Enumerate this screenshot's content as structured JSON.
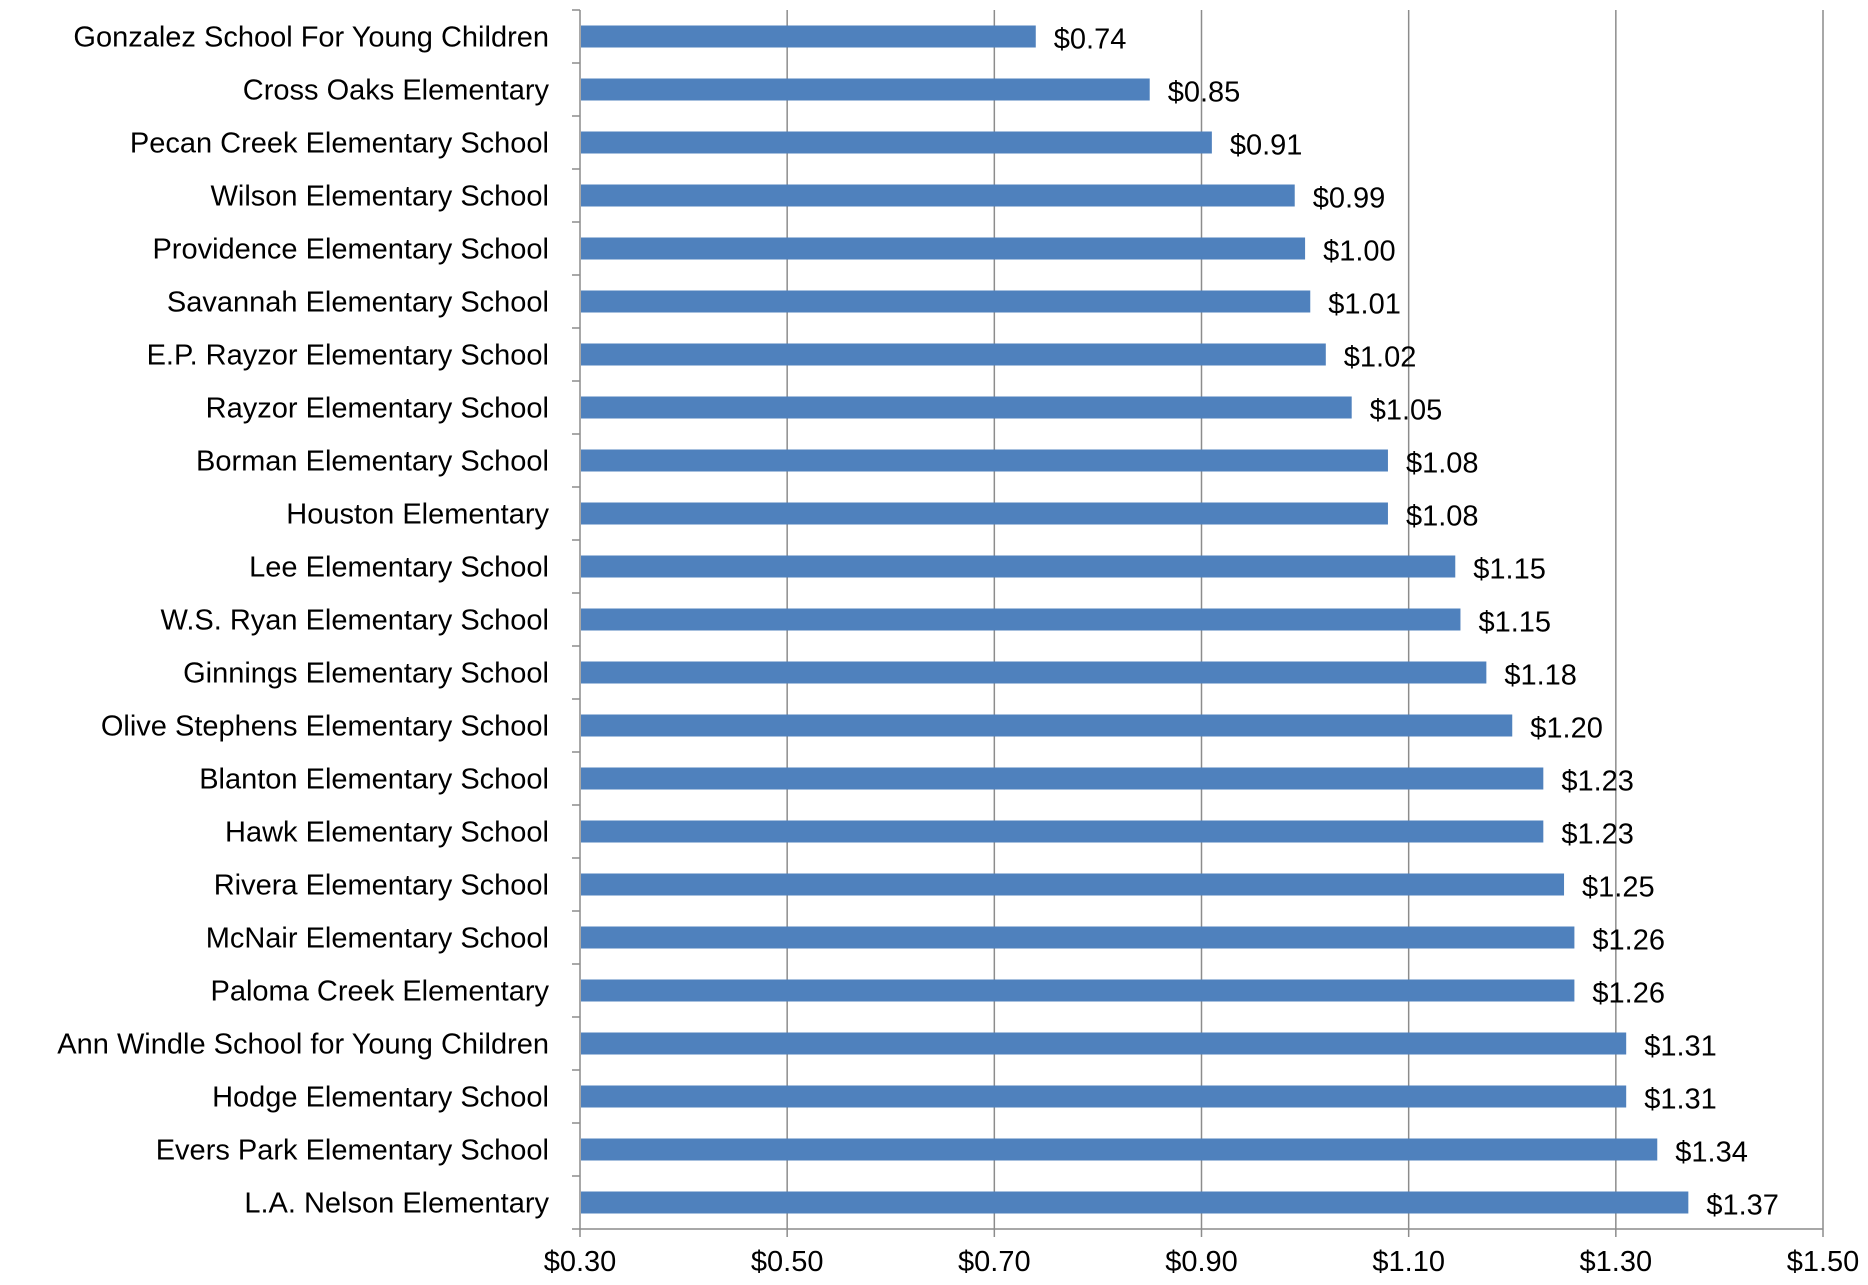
{
  "chart_data": {
    "type": "bar",
    "orientation": "horizontal",
    "title": "",
    "xlabel": "",
    "ylabel": "",
    "categories": [
      "Gonzalez School For Young Children",
      "Cross Oaks Elementary",
      "Pecan Creek Elementary School",
      "Wilson Elementary School",
      "Providence Elementary School",
      "Savannah Elementary School",
      "E.P. Rayzor Elementary School",
      "Rayzor Elementary School",
      "Borman Elementary School",
      "Houston Elementary",
      "Lee Elementary School",
      "W.S. Ryan Elementary School",
      "Ginnings Elementary School",
      "Olive Stephens Elementary School",
      "Blanton Elementary School",
      "Hawk Elementary School",
      "Rivera Elementary School",
      "McNair Elementary School",
      "Paloma Creek Elementary",
      "Ann Windle School for Young Children",
      "Hodge Elementary School",
      "Evers Park Elementary School",
      "L.A. Nelson Elementary"
    ],
    "values": [
      0.74,
      0.85,
      0.91,
      0.99,
      1.0,
      1.005,
      1.02,
      1.045,
      1.08,
      1.08,
      1.145,
      1.15,
      1.175,
      1.2,
      1.23,
      1.23,
      1.25,
      1.26,
      1.26,
      1.31,
      1.31,
      1.34,
      1.37
    ],
    "data_labels": [
      "$0.74",
      "$0.85",
      "$0.91",
      "$0.99",
      "$1.00",
      "$1.01",
      "$1.02",
      "$1.05",
      "$1.08",
      "$1.08",
      "$1.15",
      "$1.15",
      "$1.18",
      "$1.20",
      "$1.23",
      "$1.23",
      "$1.25",
      "$1.26",
      "$1.26",
      "$1.31",
      "$1.31",
      "$1.34",
      "$1.37"
    ],
    "xlim": [
      0.3,
      1.5
    ],
    "x_ticks": [
      0.3,
      0.5,
      0.7,
      0.9,
      1.1,
      1.3,
      1.5
    ],
    "x_tick_labels": [
      "$0.30",
      "$0.50",
      "$0.70",
      "$0.90",
      "$1.10",
      "$1.30",
      "$1.50"
    ],
    "grid": "vertical",
    "legend": "none",
    "bar_color": "#4f81bd",
    "grid_color": "#8c8c8c"
  }
}
